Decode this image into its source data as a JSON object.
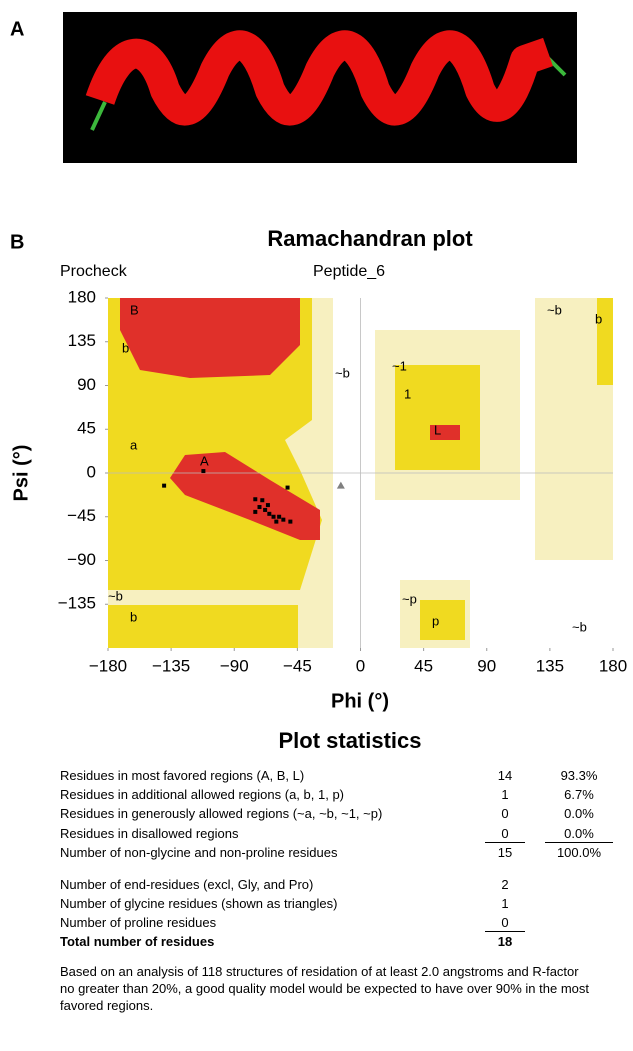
{
  "panel_labels": [
    "A",
    "B"
  ],
  "chart_data": {
    "type": "scatter",
    "title": "Ramachandran plot",
    "subtitle_left": "Procheck",
    "subtitle_right": "Peptide_6",
    "xlabel": "Phi (°)",
    "ylabel": "Psi (°)",
    "xlim": [
      -180,
      180
    ],
    "ylim": [
      -180,
      180
    ],
    "xticks": [
      {
        "value": -180,
        "label": "−180"
      },
      {
        "value": -135,
        "label": "−135"
      },
      {
        "value": -90,
        "label": "−90"
      },
      {
        "value": -45,
        "label": "−45"
      },
      0,
      45,
      90,
      135,
      180
    ],
    "yticks": [
      {
        "value": -135,
        "label": "−135"
      },
      {
        "value": -90,
        "label": "−90"
      },
      {
        "value": -45,
        "label": "−45"
      },
      0,
      45,
      90,
      135,
      180
    ],
    "points": {
      "color": "#000000",
      "x": [
        -140,
        -112,
        -75,
        -70,
        -72,
        -68,
        -65,
        -62,
        -58,
        -60,
        -55,
        -50,
        -52,
        -75,
        -66
      ],
      "y": [
        -13,
        2,
        -27,
        -28,
        -35,
        -38,
        -42,
        -45,
        -45,
        -50,
        -48,
        -50,
        -15,
        -40,
        -33
      ]
    },
    "glycine": {
      "color": "#808080",
      "x": [
        -14
      ],
      "y": [
        -13
      ]
    },
    "region_labels": [
      "B",
      "b",
      "~b",
      "~1",
      "1",
      "a",
      "A",
      "L",
      "~b",
      "b",
      "~b",
      "b",
      "~p",
      "p",
      "~b"
    ]
  },
  "statistics": {
    "title": "Plot statistics",
    "rows": [
      [
        "Residues in most favored regions (A, B, L)",
        "14",
        "93.3%"
      ],
      [
        "Residues in additional allowed regions (a, b, 1, p)",
        "1",
        "6.7%"
      ],
      [
        "Residues in generously allowed regions (~a, ~b, ~1, ~p)",
        "0",
        "0.0%"
      ],
      [
        "Residues in disallowed regions",
        "0",
        "0.0%"
      ],
      [
        "Number of non-glycine and non-proline residues",
        "15",
        "100.0%"
      ]
    ],
    "counts": [
      [
        "Number of end-residues (excl, Gly, and Pro)",
        "2"
      ],
      [
        "Number of glycine residues (shown as triangles)",
        "1"
      ],
      [
        "Number of proline residues",
        "0"
      ],
      [
        "Total number of residues",
        "18"
      ]
    ],
    "note": "Based on an analysis of 118 structures of residation of at least 2.0 angstroms and R-factor no greater than 20%, a good quality model would be expected to have over 90% in the most favored regions."
  }
}
